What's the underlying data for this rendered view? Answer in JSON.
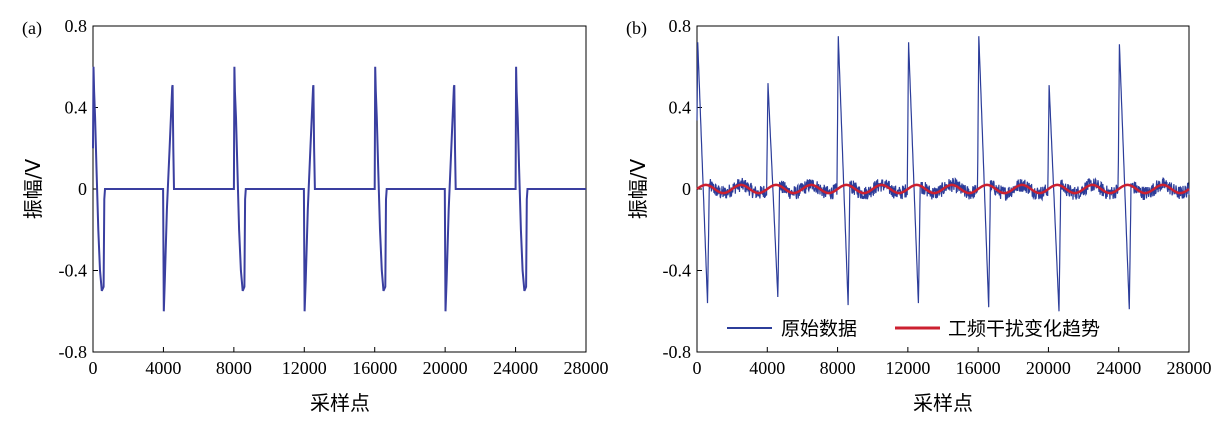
{
  "chart_data": [
    {
      "type": "line",
      "panel_label": "(a)",
      "xlabel": "采样点",
      "ylabel": "振幅/V",
      "xlim": [
        0,
        28000
      ],
      "ylim": [
        -0.8,
        0.8
      ],
      "x_ticks": [
        "0",
        "4000",
        "8000",
        "12000",
        "16000",
        "20000",
        "24000",
        "28000"
      ],
      "y_ticks": [
        "-0.8",
        "-0.4",
        "0",
        "0.4",
        "0.8"
      ],
      "grid": false,
      "line_color": "#3a3fa0",
      "series": [
        {
          "x": [
            0,
            30,
            60,
            120,
            200,
            300,
            400,
            500,
            600,
            640,
            680,
            3980,
            4020,
            4080,
            4200,
            4350,
            4500,
            4520,
            4560,
            4600,
            8000,
            8030,
            8060,
            8120,
            8200,
            8300,
            8400,
            8500,
            8600,
            8640,
            8680,
            11980,
            12020,
            12080,
            12200,
            12350,
            12500,
            12520,
            12560,
            12600,
            16000,
            16030,
            16060,
            16120,
            16200,
            16300,
            16400,
            16500,
            16600,
            16640,
            16680,
            19980,
            20020,
            20080,
            20200,
            20350,
            20500,
            20520,
            20560,
            20600,
            24000,
            24030,
            24060,
            24120,
            24200,
            24300,
            24400,
            24500,
            24600,
            24640,
            24680,
            28000
          ],
          "y": [
            0.2,
            0.6,
            0.48,
            0.35,
            0.1,
            -0.2,
            -0.4,
            -0.5,
            -0.48,
            -0.05,
            0,
            0,
            -0.6,
            -0.45,
            -0.1,
            0.2,
            0.5,
            0.51,
            0.2,
            0,
            0,
            0.6,
            0.48,
            0.35,
            0.1,
            -0.2,
            -0.4,
            -0.5,
            -0.48,
            -0.05,
            0,
            0,
            -0.6,
            -0.45,
            -0.1,
            0.2,
            0.5,
            0.51,
            0.2,
            0,
            0,
            0.6,
            0.48,
            0.35,
            0.1,
            -0.2,
            -0.4,
            -0.5,
            -0.48,
            -0.05,
            0,
            0,
            -0.6,
            -0.45,
            -0.1,
            0.2,
            0.5,
            0.51,
            0.2,
            0,
            0,
            0.6,
            0.48,
            0.35,
            0.1,
            -0.2,
            -0.4,
            -0.5,
            -0.48,
            -0.05,
            0,
            0
          ]
        }
      ]
    },
    {
      "type": "line",
      "panel_label": "(b)",
      "xlabel": "采样点",
      "ylabel": "振幅/V",
      "xlim": [
        0,
        28000
      ],
      "ylim": [
        -0.8,
        0.8
      ],
      "x_ticks": [
        "0",
        "4000",
        "8000",
        "12000",
        "16000",
        "20000",
        "24000",
        "28000"
      ],
      "y_ticks": [
        "-0.8",
        "-0.4",
        "0",
        "0.4",
        "0.8"
      ],
      "grid": false,
      "legend": {
        "placement": "bottom-center"
      },
      "series": [
        {
          "name": "原始数据",
          "color": "#2c3d9a",
          "kind": "noisy-pulse",
          "pulse_x": [
            0,
            4000,
            8000,
            12000,
            16000,
            20000,
            24000
          ],
          "pulse_peak": [
            0.72,
            0.52,
            0.75,
            0.72,
            0.75,
            0.51,
            0.71
          ],
          "pulse_trough": [
            -0.56,
            -0.53,
            -0.57,
            -0.56,
            -0.58,
            -0.6,
            -0.59
          ],
          "noise_amplitude": 0.035,
          "baseline_period": 2000,
          "baseline_amplitude": 0.02
        },
        {
          "name": "工频干扰变化趋势",
          "color": "#cc2030",
          "kind": "sine",
          "period": 2000,
          "amplitude": 0.02,
          "offset": 0.0
        }
      ]
    }
  ]
}
